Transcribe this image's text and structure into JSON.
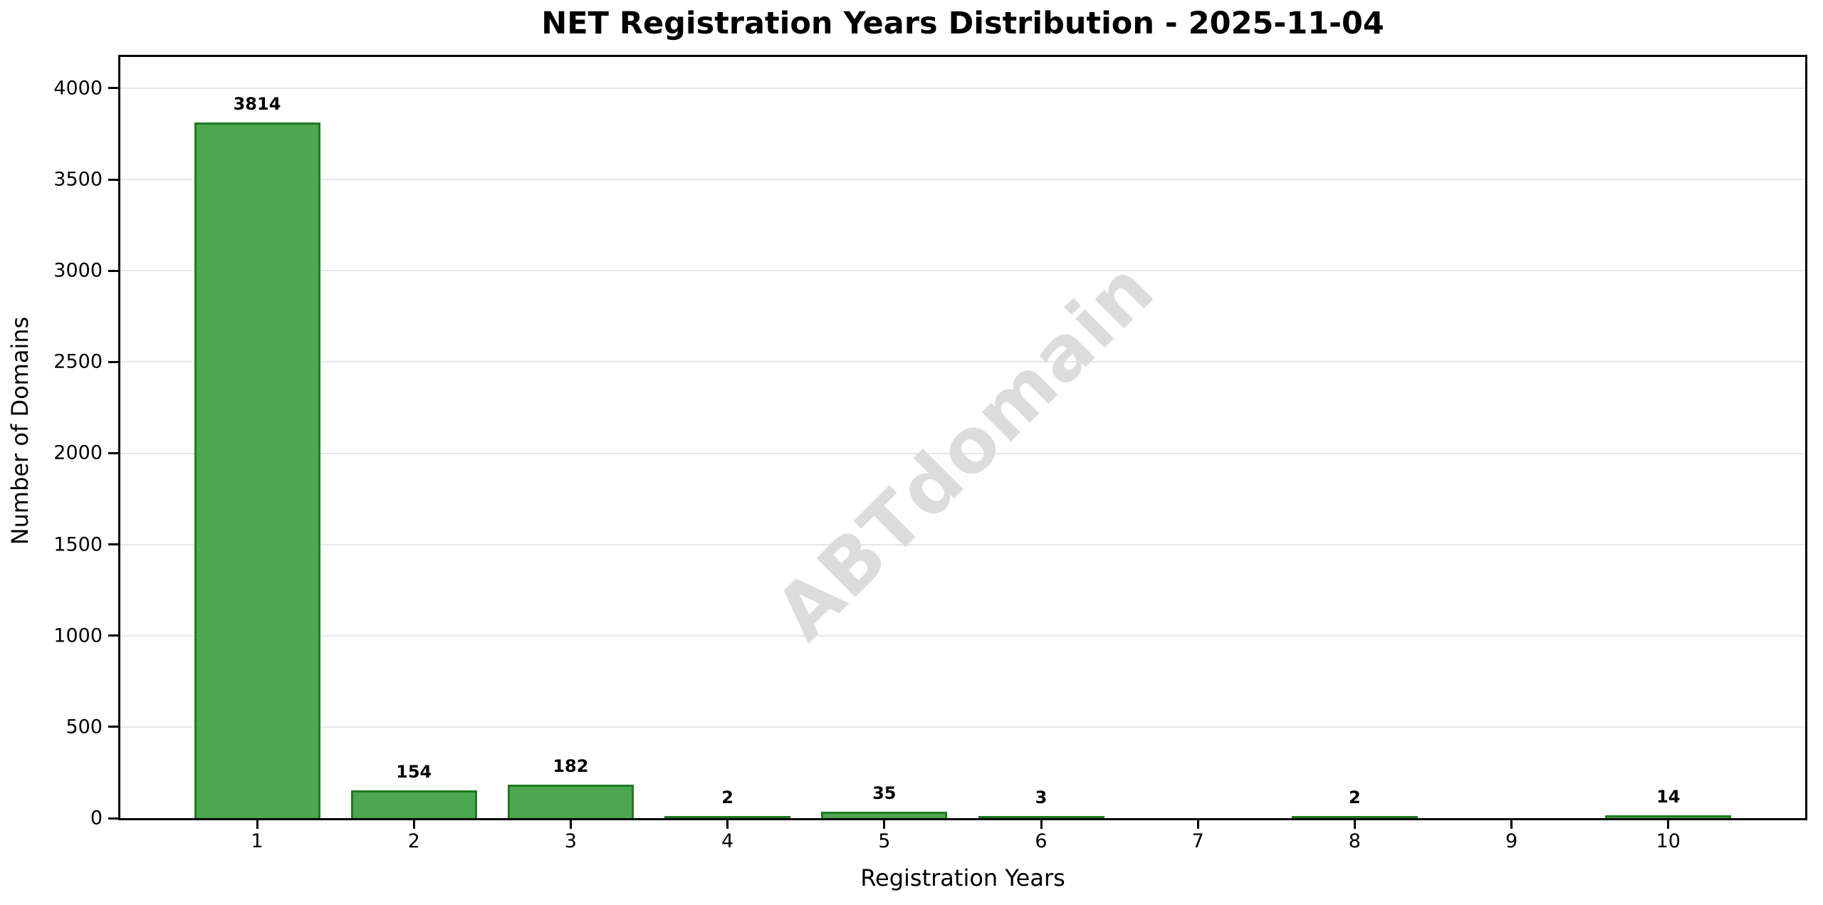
{
  "title": "NET Registration Years Distribution - 2025-11-04",
  "watermark": "ABTdomain",
  "chart_data": {
    "type": "bar",
    "title": "NET Registration Years Distribution - 2025-11-04",
    "xlabel": "Registration Years",
    "ylabel": "Number of Domains",
    "categories": [
      "1",
      "2",
      "3",
      "4",
      "5",
      "6",
      "7",
      "8",
      "9",
      "10"
    ],
    "values": [
      3814,
      154,
      182,
      2,
      35,
      3,
      0,
      2,
      0,
      14
    ],
    "bar_labels": [
      "3814",
      "154",
      "182",
      "2",
      "35",
      "3",
      "",
      "2",
      "",
      "14"
    ],
    "yticks": [
      0,
      500,
      1000,
      1500,
      2000,
      2500,
      3000,
      3500,
      4000
    ],
    "ylim": [
      0,
      4195
    ],
    "grid": "horizontal",
    "legend": "none",
    "watermark_text": "ABTdomain",
    "colors": {
      "bar_fill": "#4CA750",
      "bar_edge": "#1E7B22",
      "grid": "#E7E7E7",
      "watermark": "#DCDCDC",
      "axis": "#000000",
      "background": "#FFFFFF"
    }
  }
}
